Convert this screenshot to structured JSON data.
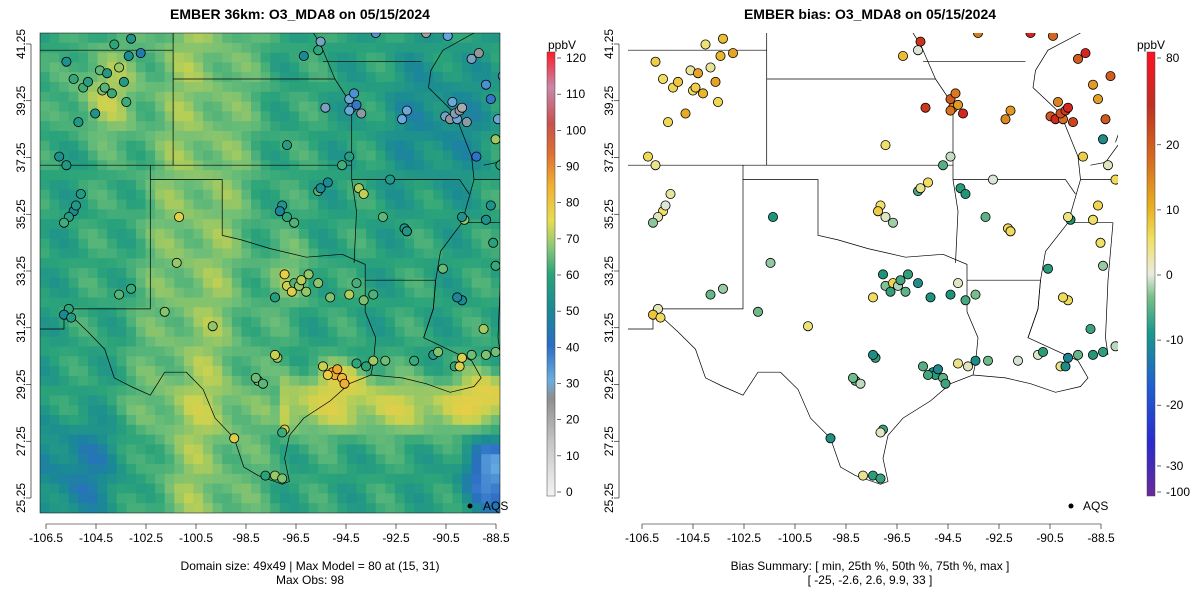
{
  "left_panel": {
    "title": "EMBER 36km: O3_MDA8 on 05/15/2024",
    "footer_line1": "Domain size: 49x49 | Max Model = 80 at (15, 31)",
    "footer_line2": "Max Obs: 98",
    "legend_label": "AQS",
    "colorbar_unit": "ppbV",
    "colorbar_ticks": [
      "0",
      "10",
      "20",
      "30",
      "40",
      "50",
      "60",
      "70",
      "80",
      "90",
      "100",
      "110",
      "120"
    ]
  },
  "right_panel": {
    "title": "EMBER bias: O3_MDA8 on 05/15/2024",
    "footer_line1": "Bias Summary: [ min, 25th %, 50th %, 75th %, max ]",
    "footer_line2": "[ -25,   -2.6,   2.6,   9.9,   33 ]",
    "legend_label": "AQS",
    "colorbar_unit": "ppbV",
    "colorbar_ticks": [
      "-100",
      "-30",
      "-20",
      "-10",
      "0",
      "10",
      "20",
      "80"
    ]
  },
  "axes": {
    "x_ticks": [
      "-106.5",
      "-104.5",
      "-102.5",
      "-100.5",
      "-98.5",
      "-96.5",
      "-94.5",
      "-92.5",
      "-90.5",
      "-88.5"
    ],
    "y_ticks": [
      "25.25",
      "27.25",
      "29.25",
      "31.25",
      "33.25",
      "35.25",
      "37.25",
      "39.25",
      "41.25"
    ]
  },
  "colors": {
    "conc_scale": [
      "#f2f2f2",
      "#c8c8c8",
      "#9a9a9a",
      "#5fa8e0",
      "#2b6cc4",
      "#1a8a94",
      "#2aa37a",
      "#7cc27a",
      "#e0d850",
      "#f0b030",
      "#e07830",
      "#c84848",
      "#c87a9a",
      "#e8303a"
    ],
    "bias_scale": [
      "#6a2a9a",
      "#3030c8",
      "#2040e0",
      "#1a8a94",
      "#3aa86a",
      "#c8d8c0",
      "#f0e060",
      "#e8a020",
      "#d06020",
      "#c02020",
      "#ff1020"
    ]
  }
}
